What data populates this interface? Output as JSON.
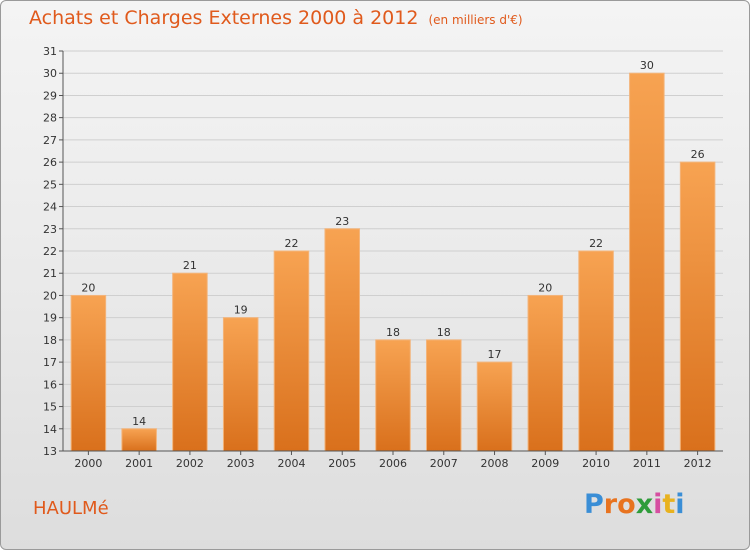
{
  "header": {
    "title": "Achats et Charges Externes 2000 à 2012",
    "unit": "(en milliers d'€)"
  },
  "commune": "HAULMé",
  "logo": {
    "letters": [
      "P",
      "r",
      "o",
      "x",
      "i",
      "t",
      "i"
    ],
    "colors": [
      "#3a8ed6",
      "#e8731f",
      "#e8731f",
      "#2e9c3a",
      "#d64fa1",
      "#e8b21f",
      "#3a8ed6"
    ]
  },
  "colors": {
    "bar_light": "#f7a352",
    "bar_dark": "#d9701c",
    "accent": "#e05a1c"
  },
  "chart_data": {
    "type": "bar",
    "title": "Achats et Charges Externes 2000 à 2012",
    "subtitle": "(en milliers d'€)",
    "categories": [
      "2000",
      "2001",
      "2002",
      "2003",
      "2004",
      "2005",
      "2006",
      "2007",
      "2008",
      "2009",
      "2010",
      "2011",
      "2012"
    ],
    "values": [
      20,
      14,
      21,
      19,
      22,
      23,
      18,
      18,
      17,
      20,
      22,
      30,
      26
    ],
    "ylim": [
      13,
      31
    ],
    "yticks": [
      13,
      14,
      15,
      16,
      17,
      18,
      19,
      20,
      21,
      22,
      23,
      24,
      25,
      26,
      27,
      28,
      29,
      30,
      31
    ],
    "grid": true,
    "legend": "none"
  }
}
